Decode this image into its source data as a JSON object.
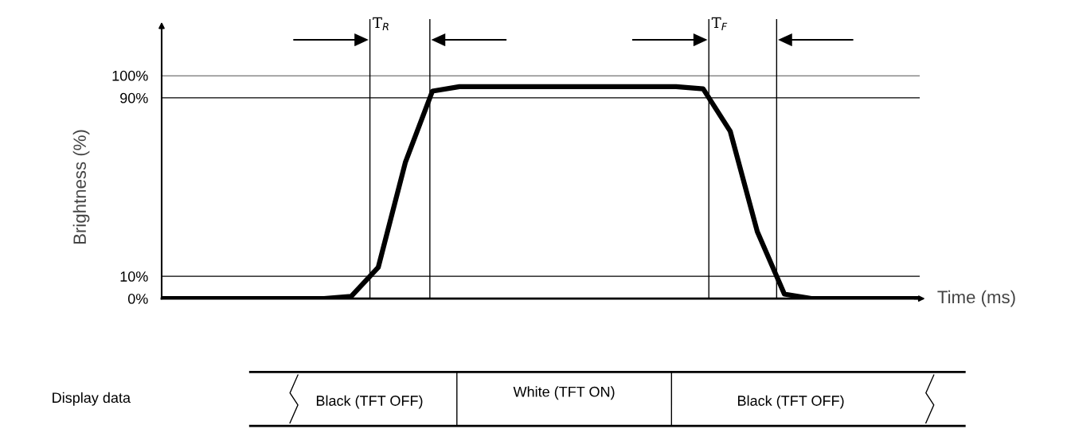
{
  "chart_data": [
    {
      "type": "line",
      "ylabel": "Brightness (%)",
      "xlabel": "Time (ms)",
      "categories": [
        null,
        null,
        null,
        null,
        null,
        null,
        null,
        null,
        null,
        null,
        null,
        null,
        null,
        null,
        null,
        null,
        null,
        null,
        null,
        null,
        null,
        null,
        null,
        null,
        null,
        null,
        null,
        null,
        null
      ],
      "series": [
        {
          "color": "#000000",
          "values": [
            0,
            0,
            0,
            0,
            0,
            0,
            0,
            1,
            14,
            61,
            93,
            95,
            95,
            95,
            95,
            95,
            95,
            95,
            95,
            95,
            94,
            75,
            30,
            2,
            0,
            0,
            0,
            0,
            0
          ]
        }
      ],
      "ylim": [
        0,
        100
      ],
      "yticks": [
        {
          "value": 0,
          "label": "0%"
        },
        {
          "value": 10,
          "label": "10%"
        },
        {
          "value": 90,
          "label": "90%"
        },
        {
          "value": 100,
          "label": "100%"
        }
      ],
      "grid": "y",
      "marker": "none",
      "line_style": "solid",
      "annotations": [
        "T$_{R}$",
        "T$_{F}$"
      ],
      "tick_labels": "y"
    },
    {
      "type": "other",
      "annotations": [
        "Display data",
        "Black (TFT OFF)",
        "White (TFT ON)",
        "Black (TFT OFF)"
      ]
    }
  ]
}
